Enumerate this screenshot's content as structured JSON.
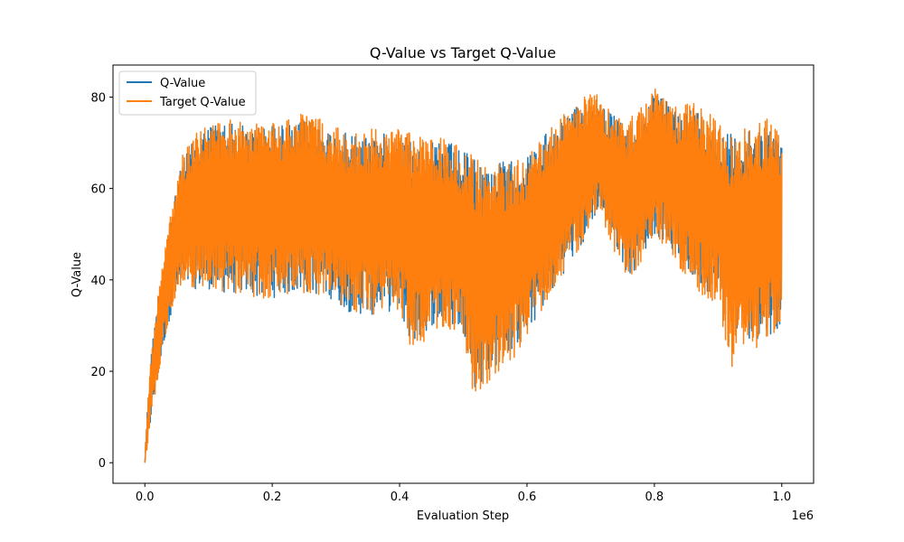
{
  "chart_data": {
    "type": "line",
    "title": "Q-Value vs Target Q-Value",
    "xlabel": "Evaluation Step",
    "ylabel": "Q-Value",
    "x_offset_label": "1e6",
    "xlim": [
      -0.05,
      1.05
    ],
    "ylim": [
      -4.5,
      87
    ],
    "x_ticks": [
      0.0,
      0.2,
      0.4,
      0.6,
      0.8,
      1.0
    ],
    "x_tick_labels": [
      "0.0",
      "0.2",
      "0.4",
      "0.6",
      "0.8",
      "1.0"
    ],
    "y_ticks": [
      0,
      20,
      40,
      60,
      80
    ],
    "y_tick_labels": [
      "0",
      "20",
      "40",
      "60",
      "80"
    ],
    "grid": false,
    "legend_position": "upper-left",
    "series": [
      {
        "name": "Q-Value",
        "color": "#1f77b4",
        "x": [
          0.0,
          0.005,
          0.01,
          0.02,
          0.03,
          0.04,
          0.05,
          0.06,
          0.08,
          0.1,
          0.12,
          0.15,
          0.18,
          0.2,
          0.23,
          0.26,
          0.29,
          0.32,
          0.35,
          0.38,
          0.4,
          0.42,
          0.45,
          0.48,
          0.5,
          0.52,
          0.54,
          0.56,
          0.58,
          0.6,
          0.63,
          0.66,
          0.69,
          0.71,
          0.73,
          0.75,
          0.76,
          0.78,
          0.8,
          0.82,
          0.84,
          0.86,
          0.88,
          0.9,
          0.92,
          0.94,
          0.96,
          0.98,
          1.0
        ],
        "high": [
          2,
          14,
          24,
          36,
          46,
          53,
          60,
          67,
          71,
          74,
          75,
          74,
          73,
          74,
          74,
          75,
          73,
          72,
          72,
          72,
          73,
          71,
          70,
          70,
          68,
          67,
          65,
          66,
          66,
          67,
          72,
          76,
          79,
          80,
          77,
          74,
          74,
          77,
          81,
          79,
          77,
          78,
          76,
          74,
          72,
          72,
          73,
          74,
          70
        ],
        "low": [
          0,
          4,
          10,
          18,
          26,
          32,
          37,
          38,
          38,
          38,
          37,
          37,
          36,
          36,
          37,
          37,
          36,
          33,
          32,
          33,
          33,
          25,
          30,
          30,
          28,
          15,
          20,
          22,
          25,
          28,
          35,
          42,
          48,
          55,
          50,
          44,
          40,
          45,
          50,
          48,
          44,
          40,
          38,
          35,
          30,
          27,
          27,
          28,
          29
        ]
      },
      {
        "name": "Target Q-Value",
        "color": "#ff7f0e",
        "x": [
          0.0,
          0.005,
          0.01,
          0.02,
          0.03,
          0.04,
          0.05,
          0.06,
          0.08,
          0.1,
          0.12,
          0.15,
          0.18,
          0.2,
          0.23,
          0.26,
          0.29,
          0.32,
          0.35,
          0.38,
          0.4,
          0.42,
          0.45,
          0.48,
          0.5,
          0.52,
          0.54,
          0.56,
          0.58,
          0.6,
          0.63,
          0.66,
          0.69,
          0.71,
          0.73,
          0.75,
          0.76,
          0.78,
          0.8,
          0.82,
          0.84,
          0.86,
          0.88,
          0.9,
          0.92,
          0.94,
          0.96,
          0.98,
          1.0
        ],
        "high": [
          2,
          14,
          24,
          36,
          46,
          54,
          61,
          68,
          72,
          75,
          76,
          75,
          74,
          75,
          75,
          78,
          74,
          73,
          73,
          73,
          74,
          72,
          71,
          71,
          68,
          67,
          65,
          66,
          66,
          67,
          72,
          77,
          80,
          81,
          77,
          75,
          75,
          78,
          82,
          80,
          78,
          79,
          77,
          75,
          72,
          73,
          74,
          76,
          71
        ],
        "low": [
          0,
          4,
          10,
          18,
          26,
          32,
          37,
          38,
          38,
          38,
          37,
          37,
          36,
          36,
          37,
          37,
          36,
          33,
          32,
          33,
          33,
          22,
          29,
          29,
          26,
          12,
          17,
          20,
          22,
          28,
          35,
          42,
          48,
          55,
          48,
          42,
          39,
          44,
          50,
          46,
          42,
          38,
          36,
          34,
          20,
          24,
          25,
          27,
          28
        ]
      }
    ]
  }
}
